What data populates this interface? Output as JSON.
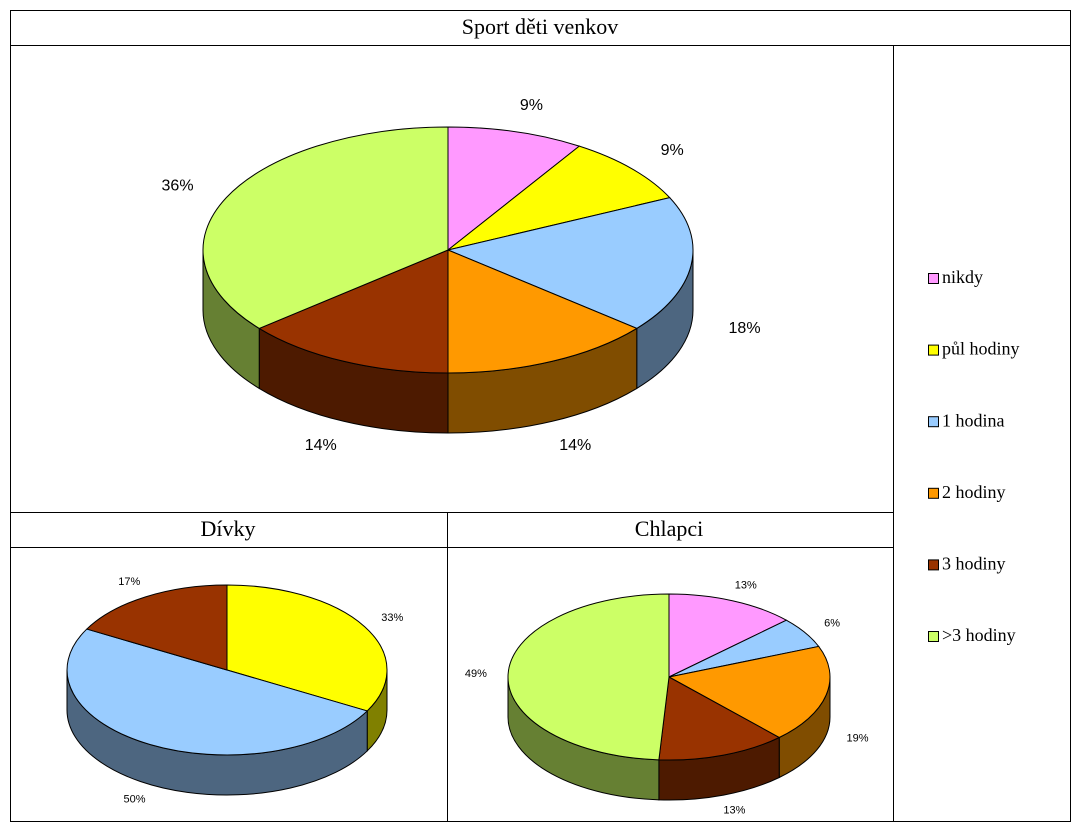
{
  "chart_data": [
    {
      "type": "pie",
      "title": "Sport děti venkov",
      "categories": [
        "nikdy",
        "půl hodiny",
        "1 hodina",
        "2 hodiny",
        "3 hodiny",
        ">3 hodiny"
      ],
      "values": [
        9,
        9,
        18,
        14,
        14,
        36
      ],
      "value_labels": [
        "9%",
        "9%",
        "18%",
        "14%",
        "14%",
        "36%"
      ],
      "colors": [
        "#ff99ff",
        "#ffff00",
        "#99ccff",
        "#ff9900",
        "#993300",
        "#ccff66"
      ],
      "legend": "right"
    },
    {
      "type": "pie",
      "title": "Dívky",
      "categories": [
        "půl hodiny",
        "1 hodina",
        "3 hodiny"
      ],
      "values": [
        33,
        50,
        17
      ],
      "value_labels": [
        "33%",
        "50%",
        "17%"
      ],
      "colors": [
        "#ffff00",
        "#99ccff",
        "#993300"
      ]
    },
    {
      "type": "pie",
      "title": "Chlapci",
      "categories": [
        "nikdy",
        "1 hodina",
        "2 hodiny",
        "3 hodiny",
        ">3 hodiny"
      ],
      "values": [
        13,
        6,
        19,
        13,
        49
      ],
      "value_labels": [
        "13%",
        "6%",
        "19%",
        "13%",
        "49%"
      ],
      "colors": [
        "#ff99ff",
        "#99ccff",
        "#ff9900",
        "#993300",
        "#ccff66"
      ]
    }
  ]
}
